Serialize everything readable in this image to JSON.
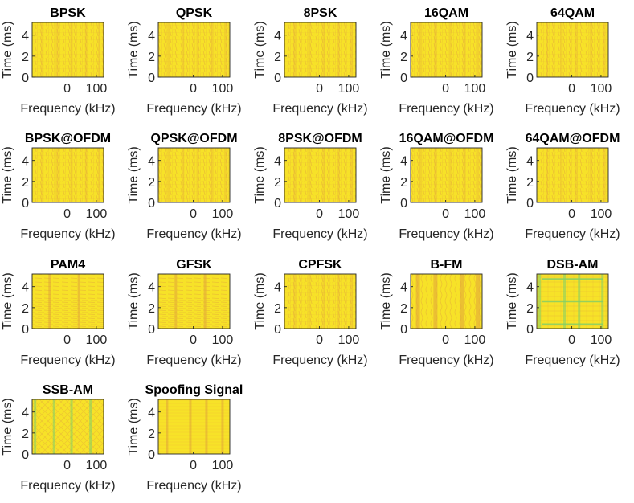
{
  "chart_data": {
    "type": "heatmap",
    "layout": {
      "rows": 4,
      "cols": 5
    },
    "xlabel": "Frequency (kHz)",
    "ylabel": "Time (ms)",
    "x_ticks": [
      0,
      100
    ],
    "y_ticks": [
      0,
      2,
      4
    ],
    "xlim": [
      -120,
      125
    ],
    "ylim": [
      0,
      5.2
    ],
    "colormap": {
      "background": "#f7e228",
      "stripe": "#e2a43a",
      "band": "#7fcf6a"
    },
    "panels": [
      {
        "title": "BPSK",
        "pattern": "fine"
      },
      {
        "title": "QPSK",
        "pattern": "fine"
      },
      {
        "title": "8PSK",
        "pattern": "fine"
      },
      {
        "title": "16QAM",
        "pattern": "fine"
      },
      {
        "title": "64QAM",
        "pattern": "fine"
      },
      {
        "title": "BPSK@OFDM",
        "pattern": "fine"
      },
      {
        "title": "QPSK@OFDM",
        "pattern": "fine"
      },
      {
        "title": "8PSK@OFDM",
        "pattern": "fine"
      },
      {
        "title": "16QAM@OFDM",
        "pattern": "fine"
      },
      {
        "title": "64QAM@OFDM",
        "pattern": "fine"
      },
      {
        "title": "PAM4",
        "pattern": "horizontal"
      },
      {
        "title": "GFSK",
        "pattern": "horizontal"
      },
      {
        "title": "CPFSK",
        "pattern": "fine"
      },
      {
        "title": "B-FM",
        "pattern": "fm"
      },
      {
        "title": "DSB-AM",
        "pattern": "am"
      },
      {
        "title": "SSB-AM",
        "pattern": "ssb"
      },
      {
        "title": "Spoofing Signal",
        "pattern": "spoof"
      }
    ]
  }
}
